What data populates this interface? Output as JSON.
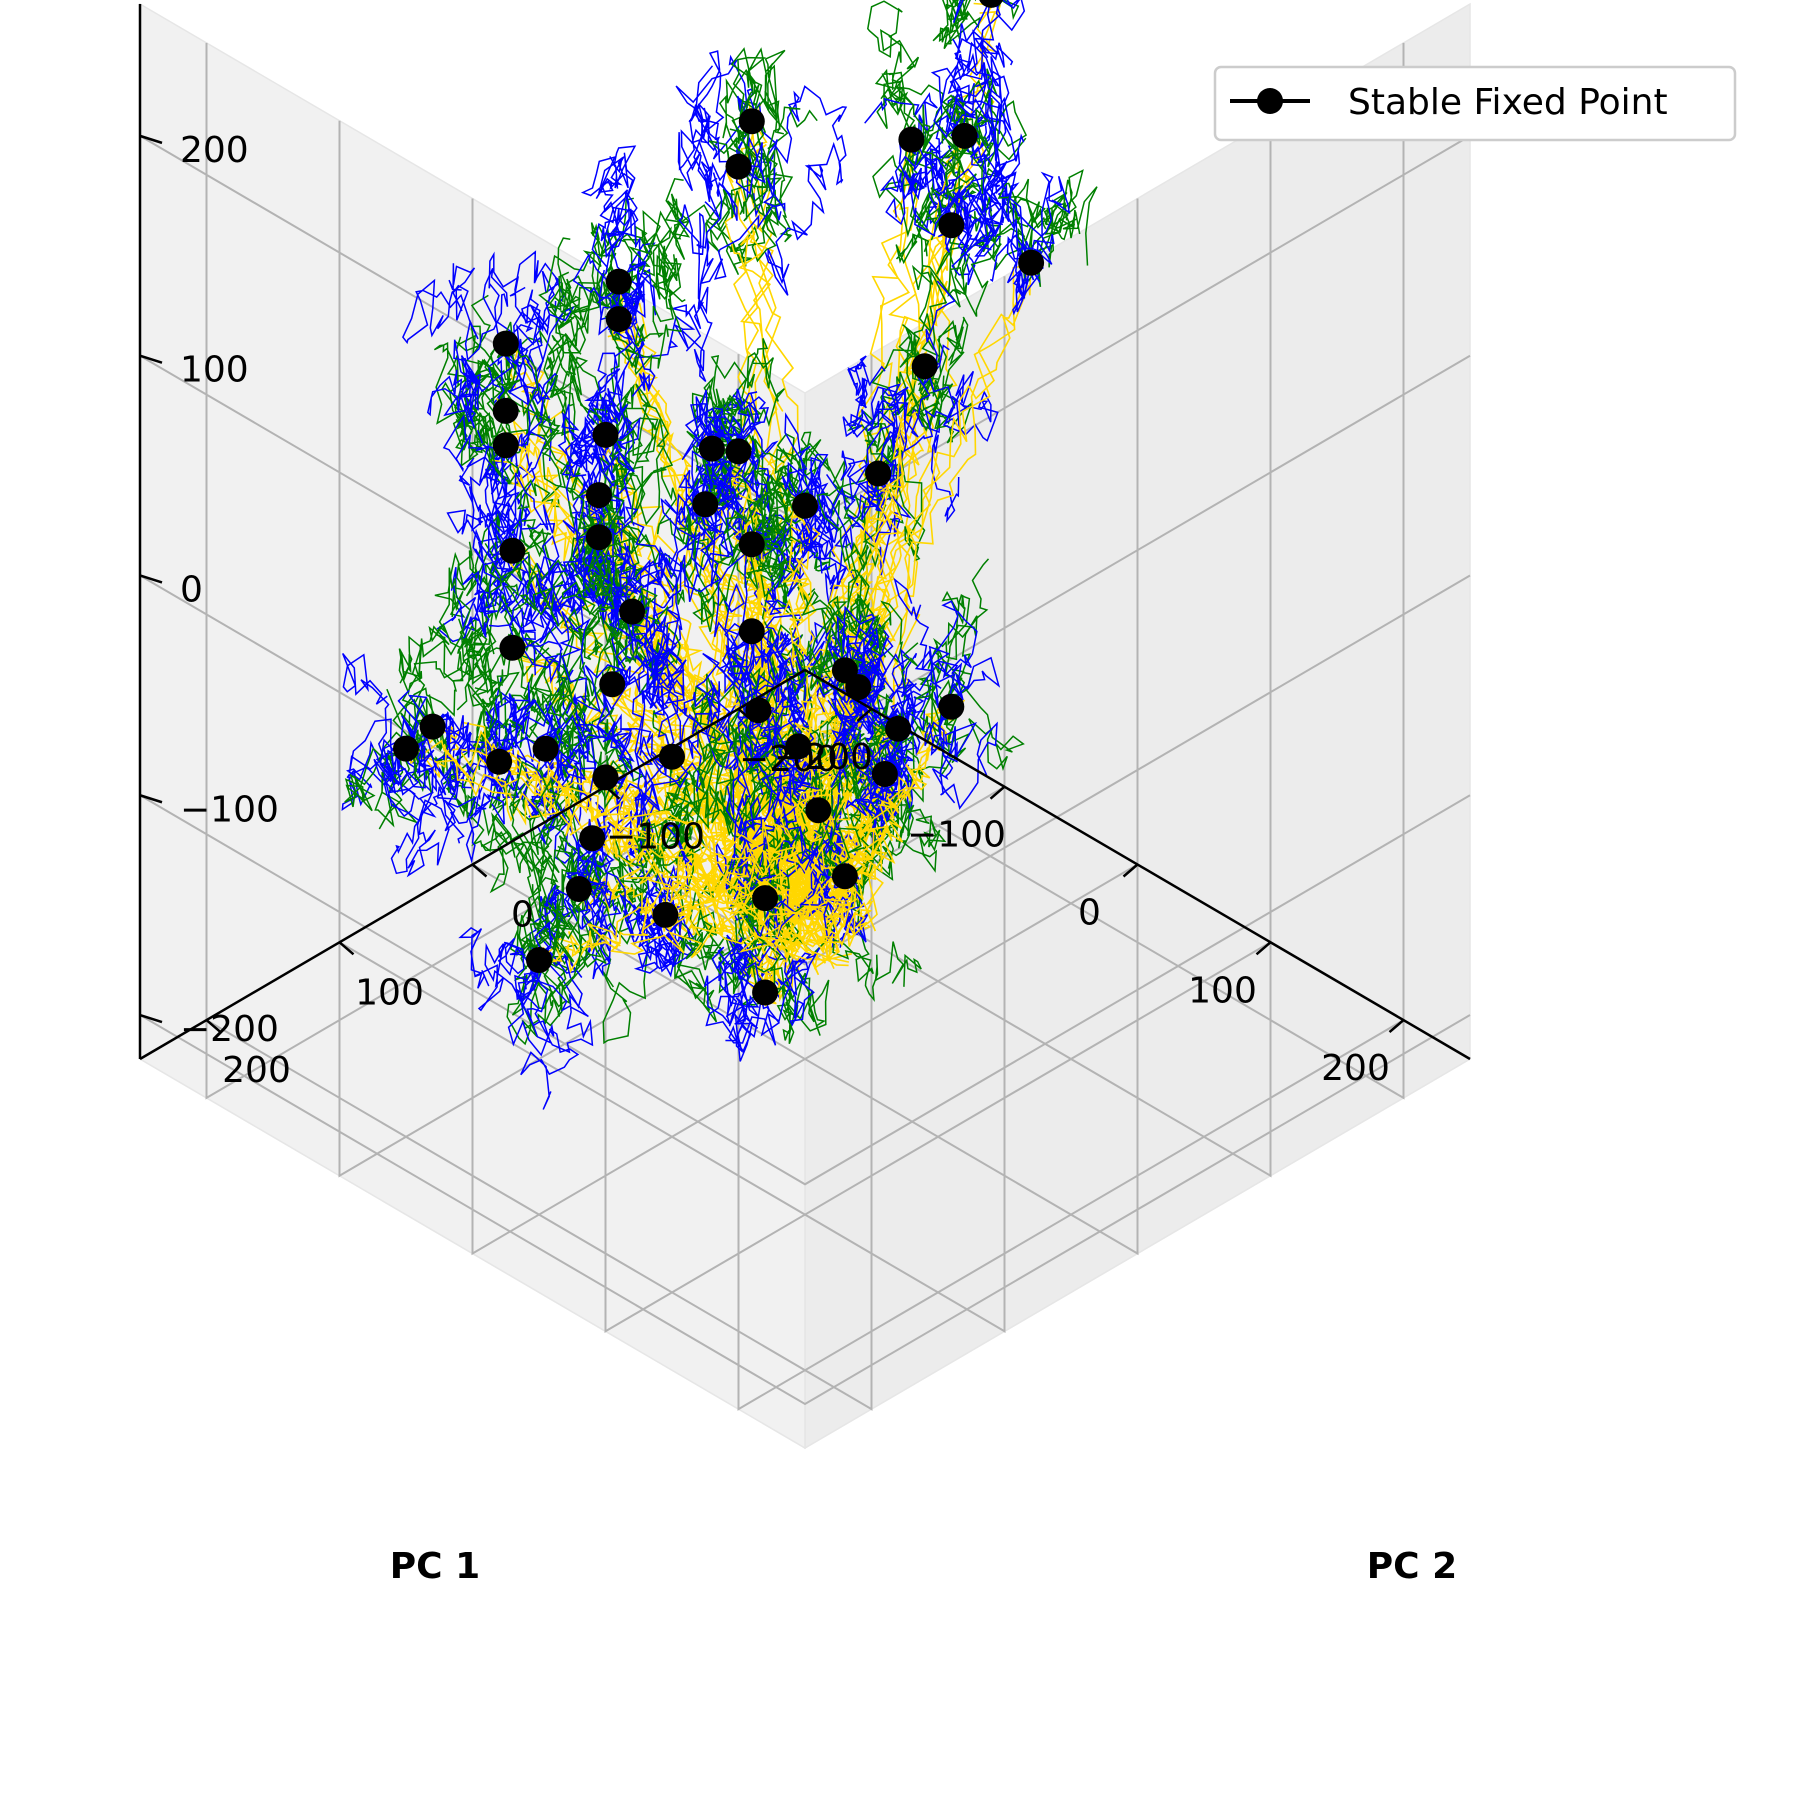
{
  "chart_data": {
    "type": "line",
    "projection": "3d",
    "title": "",
    "xlabel": "PC 1",
    "ylabel": "PC 2",
    "zlabel": "",
    "xlim": [
      -250,
      250
    ],
    "ylim": [
      -250,
      250
    ],
    "zlim": [
      -220,
      260
    ],
    "x_ticks": [
      -200,
      -100,
      0,
      100,
      200
    ],
    "y_ticks": [
      -200,
      -100,
      0,
      100,
      200
    ],
    "z_ticks": [
      -200,
      -100,
      0,
      100,
      200
    ],
    "x_tick_labels": [
      "−200",
      "−100",
      "0",
      "100",
      "200"
    ],
    "y_tick_labels": [
      "−200",
      "−100",
      "0",
      "100",
      "200"
    ],
    "z_tick_labels": [
      "−200",
      "−100",
      "0",
      "100",
      "200"
    ],
    "grid": true,
    "legend": {
      "placement": "top-right",
      "entries": [
        {
          "label": "Stable Fixed Point",
          "color": "#000000",
          "marker": "circle"
        }
      ]
    },
    "trajectory_colors": [
      "#ffd700",
      "#008000",
      "#0000ff"
    ],
    "fixed_point_color": "#000000",
    "fixed_points": [
      [
        -205,
        20,
        40
      ],
      [
        -190,
        35,
        20
      ],
      [
        -175,
        50,
        15
      ],
      [
        -160,
        -20,
        70
      ],
      [
        -150,
        -10,
        60
      ],
      [
        -140,
        80,
        -10
      ],
      [
        -130,
        20,
        25
      ],
      [
        -120,
        100,
        -40
      ],
      [
        -115,
        40,
        10
      ],
      [
        -100,
        -60,
        150
      ],
      [
        -95,
        60,
        5
      ],
      [
        -90,
        -40,
        140
      ],
      [
        -85,
        110,
        -70
      ],
      [
        -80,
        150,
        -60
      ],
      [
        -70,
        60,
        -20
      ],
      [
        -60,
        10,
        40
      ],
      [
        -55,
        20,
        20
      ],
      [
        -45,
        100,
        -30
      ],
      [
        -40,
        0,
        0
      ],
      [
        -30,
        120,
        -60
      ],
      [
        -20,
        30,
        60
      ],
      [
        -10,
        150,
        -70
      ],
      [
        0,
        -80,
        170
      ],
      [
        10,
        110,
        -40
      ],
      [
        30,
        70,
        10
      ],
      [
        40,
        40,
        60
      ],
      [
        50,
        -90,
        250
      ],
      [
        55,
        90,
        -10
      ],
      [
        60,
        -60,
        200
      ],
      [
        65,
        70,
        -30
      ],
      [
        70,
        -40,
        170
      ],
      [
        75,
        20,
        80
      ],
      [
        80,
        -10,
        120
      ],
      [
        90,
        60,
        10
      ],
      [
        95,
        200,
        -50
      ],
      [
        110,
        -60,
        160
      ],
      [
        120,
        80,
        20
      ],
      [
        150,
        180,
        -30
      ],
      [
        170,
        160,
        10
      ],
      [
        180,
        150,
        -20
      ],
      [
        190,
        120,
        40
      ],
      [
        200,
        140,
        30
      ],
      [
        210,
        100,
        50
      ],
      [
        140,
        170,
        -80
      ],
      [
        -170,
        110,
        -90
      ],
      [
        -180,
        120,
        -100
      ],
      [
        60,
        230,
        -40
      ],
      [
        20,
        220,
        -90
      ]
    ]
  }
}
